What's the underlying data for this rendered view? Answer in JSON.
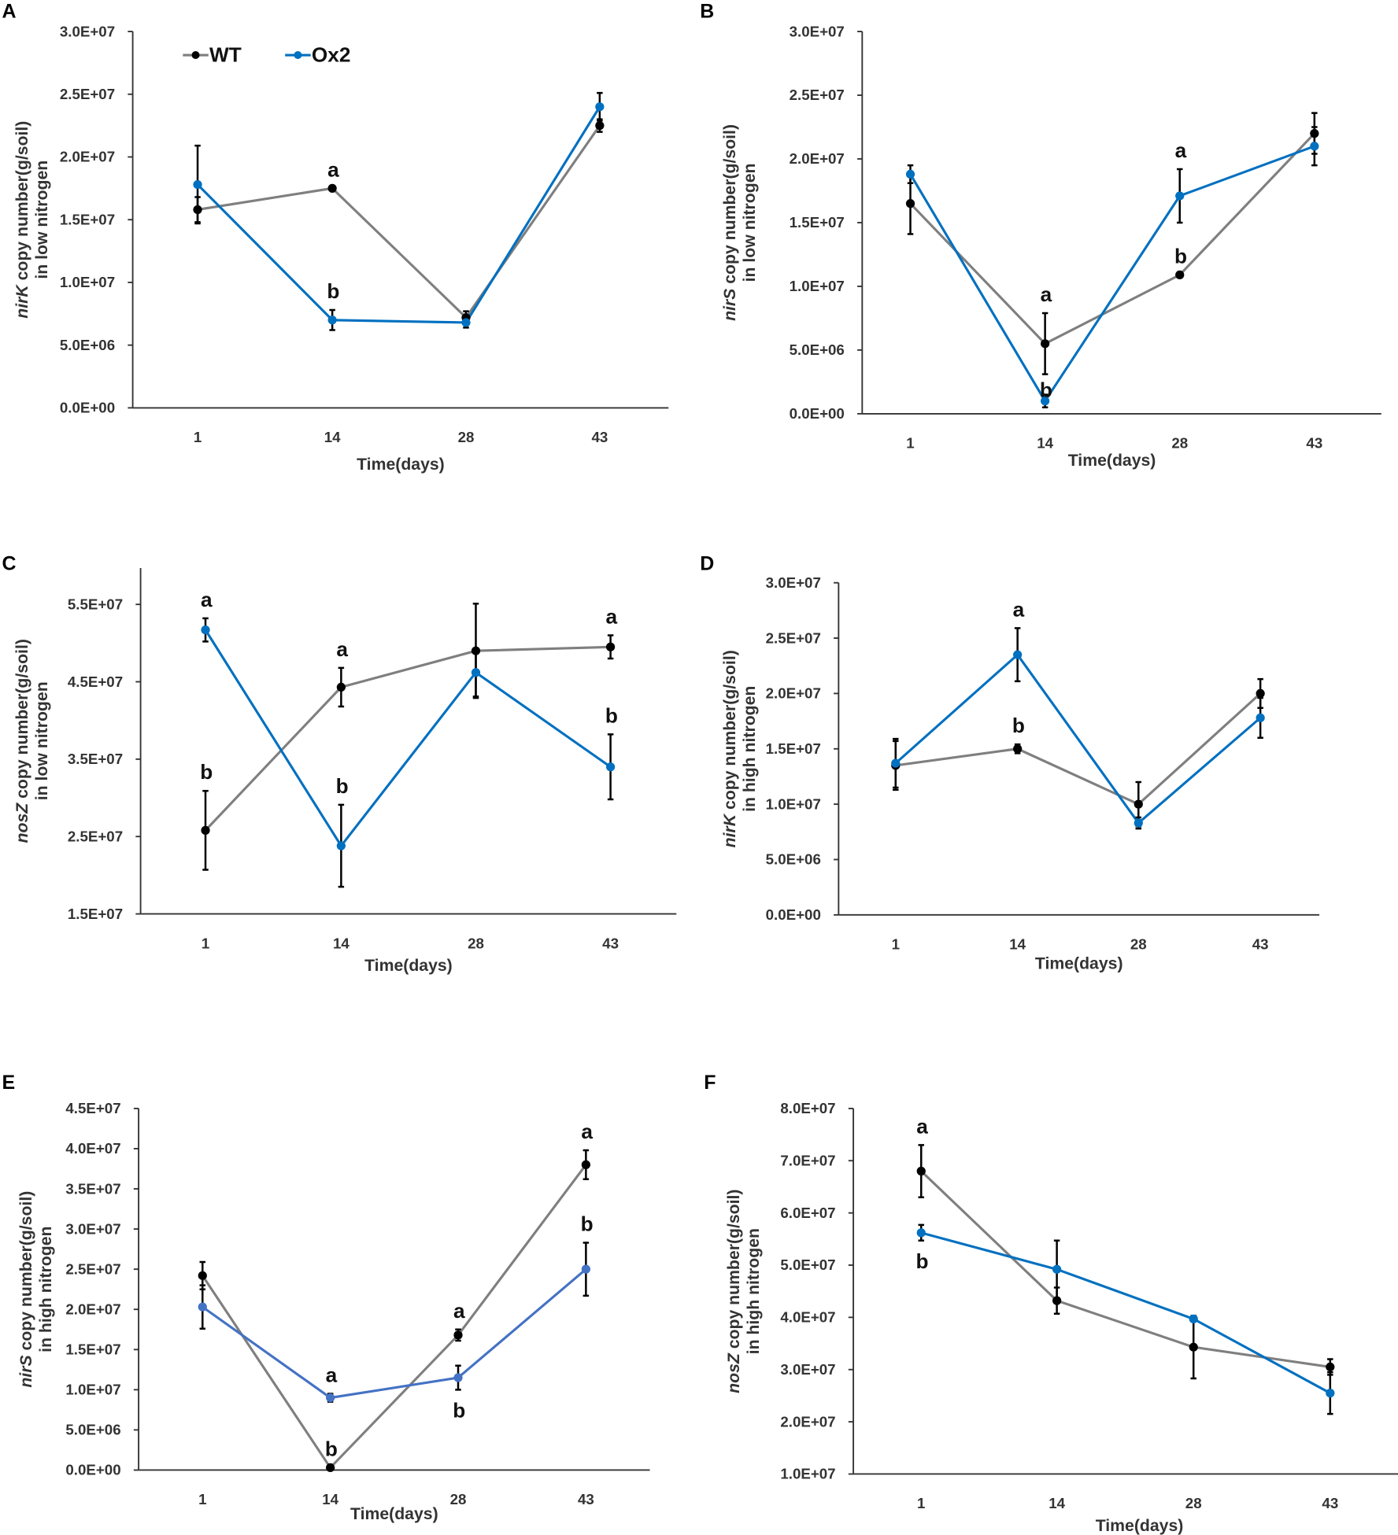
{
  "colors": {
    "WT": "#7f7f7f",
    "Ox2": "#0070c0",
    "Ox2_E": "#4472c4",
    "marker": "#000000"
  },
  "legend": [
    {
      "name": "WT"
    },
    {
      "name": "Ox2"
    }
  ],
  "chart_data": [
    {
      "panel": "A",
      "type": "line",
      "gene": "nirK",
      "ylabel_rest": " copy number(g/soil)",
      "ylabel_line2": "in low nitrogen",
      "xlabel": "Time(days)",
      "categories": [
        "1",
        "14",
        "28",
        "43"
      ],
      "ylim": [
        0,
        30000000
      ],
      "yticks": [
        "0.0E+00",
        "5.0E+06",
        "1.0E+07",
        "1.5E+07",
        "2.0E+07",
        "2.5E+07",
        "3.0E+07"
      ],
      "ystep": 5000000,
      "series": [
        {
          "name": "WT",
          "values": [
            15800000,
            17500000,
            7200000,
            22500000
          ],
          "errors": [
            1000000,
            0,
            500000,
            500000
          ]
        },
        {
          "name": "Ox2",
          "values": [
            17800000,
            7000000,
            6800000,
            24000000
          ],
          "errors": [
            3100000,
            800000,
            400000,
            1100000
          ]
        }
      ],
      "letters": [
        {
          "x": 1,
          "series": "WT",
          "text": "a",
          "pos": "above"
        },
        {
          "x": 1,
          "series": "Ox2",
          "text": "b",
          "pos": "above"
        }
      ],
      "legend": "top-left"
    },
    {
      "panel": "B",
      "type": "line",
      "gene": "nirS",
      "ylabel_rest": " copy number(g/soil)",
      "ylabel_line2": "in low nitrogen",
      "xlabel": "Time(days)",
      "categories": [
        "1",
        "14",
        "28",
        "43"
      ],
      "ylim": [
        0,
        30000000
      ],
      "yticks": [
        "0.0E+00",
        "5.0E+06",
        "1.0E+07",
        "1.5E+07",
        "2.0E+07",
        "2.5E+07",
        "3.0E+07"
      ],
      "ystep": 5000000,
      "series": [
        {
          "name": "WT",
          "values": [
            16500000,
            5500000,
            10900000,
            22000000
          ],
          "errors": [
            2400000,
            2400000,
            0,
            1600000
          ]
        },
        {
          "name": "Ox2",
          "values": [
            18800000,
            1000000,
            17100000,
            21000000
          ],
          "errors": [
            700000,
            500000,
            2100000,
            1500000
          ]
        }
      ],
      "letters": [
        {
          "x": 1,
          "series": "WT",
          "text": "a",
          "pos": "above"
        },
        {
          "x": 1,
          "series": "Ox2",
          "text": "b",
          "pos": "on"
        },
        {
          "x": 2,
          "series": "Ox2",
          "text": "a",
          "pos": "above"
        },
        {
          "x": 2,
          "series": "WT",
          "text": "b",
          "pos": "above"
        }
      ]
    },
    {
      "panel": "C",
      "type": "line",
      "gene": "nosZ",
      "ylabel_rest": " copy number(g/soil)",
      "ylabel_line2": "in low nitrogen",
      "xlabel": "Time(days)",
      "categories": [
        "1",
        "14",
        "28",
        "43"
      ],
      "ylim": [
        15000000,
        60000000
      ],
      "yticks": [
        "1.5E+07",
        "2.5E+07",
        "3.5E+07",
        "4.5E+07",
        "5.5E+07"
      ],
      "ystep": 10000000,
      "series": [
        {
          "name": "WT",
          "values": [
            25800000,
            44300000,
            49000000,
            49500000
          ],
          "errors": [
            5100000,
            2500000,
            6100000,
            1500000
          ]
        },
        {
          "name": "Ox2",
          "values": [
            51700000,
            23800000,
            46200000,
            34000000
          ],
          "errors": [
            1500000,
            5300000,
            3100000,
            4200000
          ]
        }
      ],
      "letters": [
        {
          "x": 0,
          "series": "Ox2",
          "text": "a",
          "pos": "above"
        },
        {
          "x": 0,
          "series": "WT",
          "text": "b",
          "pos": "above"
        },
        {
          "x": 1,
          "series": "WT",
          "text": "a",
          "pos": "above"
        },
        {
          "x": 1,
          "series": "Ox2",
          "text": "b",
          "pos": "above"
        },
        {
          "x": 3,
          "series": "WT",
          "text": "a",
          "pos": "above"
        },
        {
          "x": 3,
          "series": "Ox2",
          "text": "b",
          "pos": "above"
        }
      ]
    },
    {
      "panel": "D",
      "type": "line",
      "gene": "nirK",
      "ylabel_rest": " copy number(g/soil)",
      "ylabel_line2": "in high nitrogen",
      "xlabel": "Time(days)",
      "categories": [
        "1",
        "14",
        "28",
        "43"
      ],
      "ylim": [
        0,
        30000000
      ],
      "yticks": [
        "0.0E+00",
        "5.0E+06",
        "1.0E+07",
        "1.5E+07",
        "2.0E+07",
        "2.5E+07",
        "3.0E+07"
      ],
      "ystep": 5000000,
      "series": [
        {
          "name": "WT",
          "values": [
            13500000,
            15000000,
            10000000,
            20000000
          ],
          "errors": [
            2200000,
            400000,
            2000000,
            1300000
          ]
        },
        {
          "name": "Ox2",
          "values": [
            13700000,
            23500000,
            8300000,
            17800000
          ],
          "errors": [
            2200000,
            2400000,
            500000,
            1800000
          ]
        }
      ],
      "letters": [
        {
          "x": 1,
          "series": "Ox2",
          "text": "a",
          "pos": "above"
        },
        {
          "x": 1,
          "series": "WT",
          "text": "b",
          "pos": "above"
        }
      ]
    },
    {
      "panel": "E",
      "type": "line",
      "gene": "nirS",
      "ylabel_rest": " copy number(g/soil)",
      "ylabel_line2": "in high nitrogen",
      "xlabel": "Time(days)",
      "categories": [
        "1",
        "14",
        "28",
        "43"
      ],
      "ylim": [
        0,
        45000000
      ],
      "yticks": [
        "0.0E+00",
        "5.0E+06",
        "1.0E+07",
        "1.5E+07",
        "2.0E+07",
        "2.5E+07",
        "3.0E+07",
        "3.5E+07",
        "4.0E+07",
        "4.5E+07"
      ],
      "ystep": 5000000,
      "series": [
        {
          "name": "WT",
          "values": [
            24200000,
            300000,
            16800000,
            38000000
          ],
          "errors": [
            1700000,
            0,
            700000,
            1800000
          ]
        },
        {
          "name": "Ox2",
          "values": [
            20300000,
            9000000,
            11500000,
            25000000
          ],
          "errors": [
            2700000,
            500000,
            1500000,
            3300000
          ]
        }
      ],
      "letters": [
        {
          "x": 1,
          "series": "Ox2",
          "text": "a",
          "pos": "above"
        },
        {
          "x": 1,
          "series": "WT",
          "text": "b",
          "pos": "above"
        },
        {
          "x": 2,
          "series": "WT",
          "text": "a",
          "pos": "above"
        },
        {
          "x": 2,
          "series": "Ox2",
          "text": "b",
          "pos": "below"
        },
        {
          "x": 3,
          "series": "WT",
          "text": "a",
          "pos": "above"
        },
        {
          "x": 3,
          "series": "Ox2",
          "text": "b",
          "pos": "above"
        }
      ]
    },
    {
      "panel": "F",
      "type": "line",
      "gene": "nosZ",
      "ylabel_rest": " copy number(g/soil)",
      "ylabel_line2": "in high nitrogen",
      "xlabel": "Time(days)",
      "categories": [
        "1",
        "14",
        "28",
        "43"
      ],
      "ylim": [
        10000000,
        80000000
      ],
      "yticks": [
        "1.0E+07",
        "2.0E+07",
        "3.0E+07",
        "4.0E+07",
        "5.0E+07",
        "6.0E+07",
        "7.0E+07",
        "8.0E+07"
      ],
      "ystep": 10000000,
      "series": [
        {
          "name": "WT",
          "values": [
            68000000,
            43200000,
            34300000,
            30500000
          ],
          "errors": [
            5000000,
            2500000,
            6000000,
            1500000
          ]
        },
        {
          "name": "Ox2",
          "values": [
            56200000,
            49200000,
            39700000,
            25500000
          ],
          "errors": [
            1500000,
            5500000,
            500000,
            4000000
          ]
        }
      ],
      "letters": [
        {
          "x": 0,
          "series": "WT",
          "text": "a",
          "pos": "above"
        },
        {
          "x": 0,
          "series": "Ox2",
          "text": "b",
          "pos": "below"
        }
      ]
    }
  ]
}
